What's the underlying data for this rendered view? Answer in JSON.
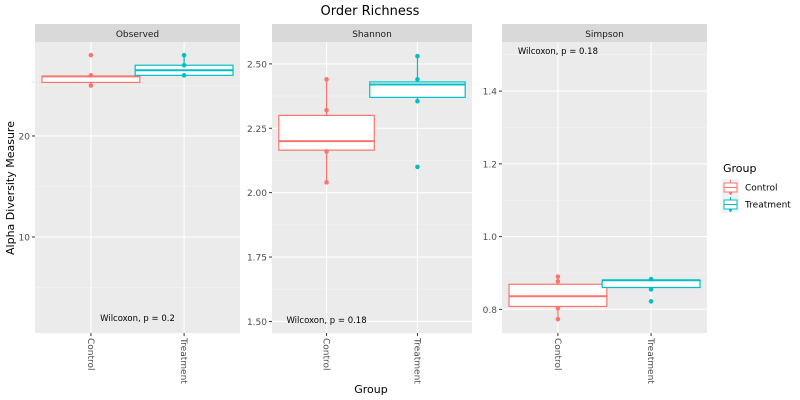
{
  "chart_data": {
    "type": "box",
    "title": "Order Richness",
    "xlabel": "Group",
    "ylabel": "Alpha Diversity Measure",
    "categories": [
      "Control",
      "Treatment"
    ],
    "legend": {
      "title": "Group",
      "position": "right",
      "entries": [
        {
          "label": "Control",
          "color": "#F8766D"
        },
        {
          "label": "Treatment",
          "color": "#00BFC4"
        }
      ]
    },
    "panels": [
      {
        "name": "Observed",
        "ylim": [
          0.5,
          29.3
        ],
        "yticks": [
          10,
          20
        ],
        "tick_labels": [
          "10",
          "20"
        ],
        "annotation": {
          "text": "Wilcoxon, p = 0.2",
          "x": 1.5,
          "y": 2.0
        },
        "groups": [
          {
            "group": "Control",
            "q1": 25.3,
            "median": 25.9,
            "q3": 25.9,
            "whisker_low": 25.0,
            "whisker_high": 25.9,
            "points": [
              28,
              26,
              25
            ],
            "outliers": [
              28
            ]
          },
          {
            "group": "Treatment",
            "q1": 26.0,
            "median": 26.5,
            "q3": 27.0,
            "whisker_low": 26.0,
            "whisker_high": 28.0,
            "points": [
              28,
              27,
              26
            ],
            "outliers": []
          }
        ]
      },
      {
        "name": "Shannon",
        "ylim": [
          1.455,
          2.585
        ],
        "yticks": [
          1.5,
          1.75,
          2.0,
          2.25,
          2.5
        ],
        "tick_labels": [
          "1.50",
          "1.75",
          "2.00",
          "2.25",
          "2.50"
        ],
        "annotation": {
          "text": "Wilcoxon, p = 0.18",
          "x": 1.0,
          "y": 1.505
        },
        "groups": [
          {
            "group": "Control",
            "q1": 2.165,
            "median": 2.2,
            "q3": 2.3,
            "whisker_low": 2.04,
            "whisker_high": 2.44,
            "points": [
              2.44,
              2.32,
              2.16,
              2.04
            ],
            "outliers": []
          },
          {
            "group": "Treatment",
            "q1": 2.37,
            "median": 2.42,
            "q3": 2.43,
            "whisker_low": 2.355,
            "whisker_high": 2.53,
            "points": [
              2.53,
              2.44,
              2.355,
              2.1
            ],
            "outliers": [
              2.1
            ]
          }
        ]
      },
      {
        "name": "Simpson",
        "ylim": [
          0.735,
          1.535
        ],
        "yticks": [
          0.8,
          1.0,
          1.2,
          1.4
        ],
        "tick_labels": [
          "0.8",
          "1.0",
          "1.2",
          "1.4"
        ],
        "annotation": {
          "text": "Wilcoxon, p = 0.18",
          "x": 1.0,
          "y": 1.51
        },
        "groups": [
          {
            "group": "Control",
            "q1": 0.808,
            "median": 0.836,
            "q3": 0.869,
            "whisker_low": 0.773,
            "whisker_high": 0.89,
            "points": [
              0.89,
              0.877,
              0.803,
              0.773
            ],
            "outliers": []
          },
          {
            "group": "Treatment",
            "q1": 0.86,
            "median": 0.88,
            "q3": 0.88,
            "whisker_low": 0.855,
            "whisker_high": 0.883,
            "points": [
              0.883,
              0.855,
              0.822
            ],
            "outliers": [
              0.822
            ]
          }
        ]
      }
    ]
  }
}
